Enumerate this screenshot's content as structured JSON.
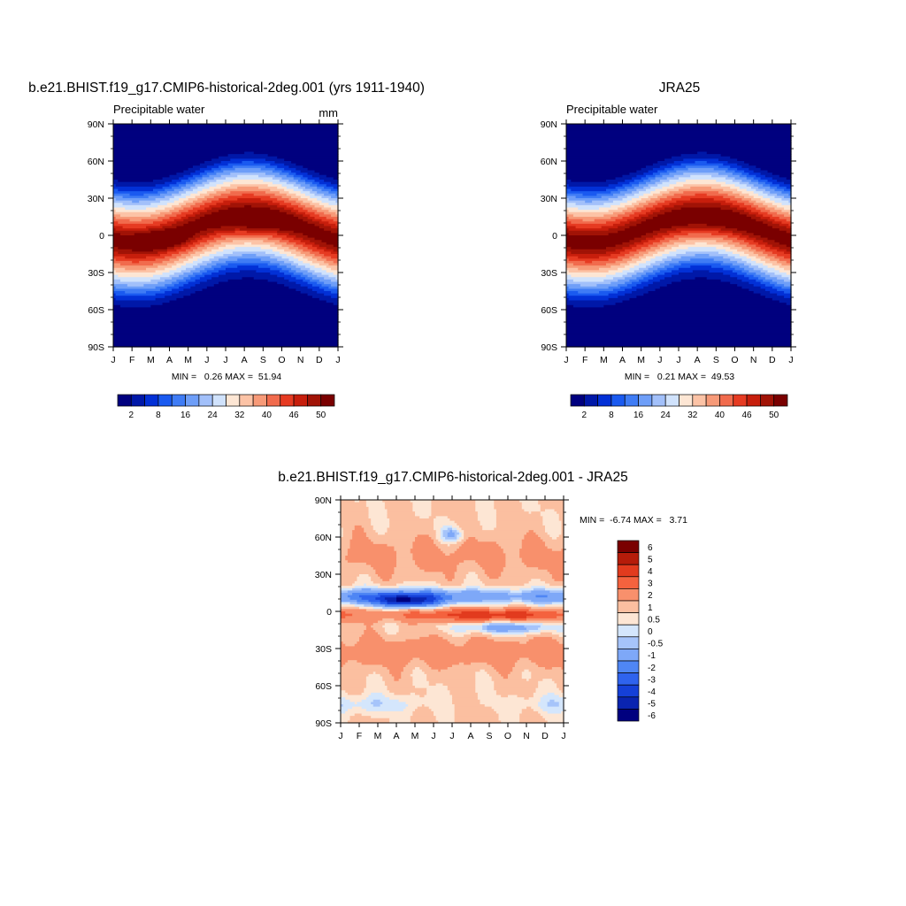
{
  "panels": {
    "model": {
      "title": "b.e21.BHIST.f19_g17.CMIP6-historical-2deg.001 (yrs 1911-1940)",
      "left_label": "Precipitable water",
      "right_label": "mm",
      "stats": "MIN =   0.26 MAX =  51.94"
    },
    "obs": {
      "title": "JRA25",
      "left_label": "Precipitable water",
      "stats": "MIN =   0.21 MAX =  49.53"
    },
    "diff": {
      "title": "b.e21.BHIST.f19_g17.CMIP6-historical-2deg.001 - JRA25",
      "stats": "MIN =  -6.74 MAX =   3.71"
    }
  },
  "axes": {
    "x_ticks": [
      "J",
      "F",
      "M",
      "A",
      "M",
      "J",
      "J",
      "A",
      "S",
      "O",
      "N",
      "D",
      "J"
    ],
    "y_ticks": [
      "90N",
      "60N",
      "30N",
      "0",
      "30S",
      "60S",
      "90S"
    ]
  },
  "colorbars": {
    "main": {
      "labels": [
        "2",
        "8",
        "16",
        "24",
        "32",
        "40",
        "46",
        "50"
      ],
      "colors": [
        "#00007f",
        "#0018a8",
        "#0230d6",
        "#1a5af0",
        "#3f7cf5",
        "#6e9ef8",
        "#a2c0fa",
        "#d0e2fc",
        "#fde6d4",
        "#fcc3a6",
        "#f79a78",
        "#f16b4d",
        "#e63b22",
        "#c71e0c",
        "#a11306",
        "#7a0000"
      ]
    },
    "diff": {
      "labels": [
        "6",
        "5",
        "4",
        "3",
        "2",
        "1",
        "0.5",
        "0",
        "-0.5",
        "-1",
        "-2",
        "-3",
        "-4",
        "-5",
        "-6"
      ],
      "colors": [
        "#7a0000",
        "#b51c0a",
        "#e23b1e",
        "#f4623e",
        "#f8906c",
        "#fbbfa0",
        "#fde6d4",
        "#d4e6fc",
        "#a6c4fa",
        "#7ea8f8",
        "#4f86f4",
        "#2f63ee",
        "#1540d8",
        "#0a24b0",
        "#00007f"
      ]
    }
  },
  "chart_data": [
    {
      "type": "heatmap",
      "title": "b.e21.BHIST.f19_g17.CMIP6-historical-2deg.001 (yrs 1911-1940)",
      "subtitle_left": "Precipitable water",
      "subtitle_right": "mm",
      "x": [
        "J",
        "F",
        "M",
        "A",
        "M",
        "J",
        "J",
        "A",
        "S",
        "O",
        "N",
        "D",
        "J"
      ],
      "y": [
        "90N",
        "60N",
        "30N",
        "0",
        "30S",
        "60S",
        "90S"
      ],
      "units": "mm",
      "levels": [
        2,
        4,
        6,
        8,
        10,
        13,
        16,
        20,
        24,
        28,
        32,
        36,
        40,
        43,
        46,
        50
      ],
      "min": 0.26,
      "max": 51.94,
      "features": {
        "itcz_peak_month": "Aug",
        "itcz_peak_lat": 8,
        "itcz_peak_value": 51.9,
        "secondary_peak_month": "Mar",
        "secondary_peak_lat": -4
      }
    },
    {
      "type": "heatmap",
      "title": "JRA25",
      "subtitle_left": "Precipitable water",
      "x": [
        "J",
        "F",
        "M",
        "A",
        "M",
        "J",
        "J",
        "A",
        "S",
        "O",
        "N",
        "D",
        "J"
      ],
      "y": [
        "90N",
        "60N",
        "30N",
        "0",
        "30S",
        "60S",
        "90S"
      ],
      "units": "mm",
      "levels": [
        2,
        4,
        6,
        8,
        10,
        13,
        16,
        20,
        24,
        28,
        32,
        36,
        40,
        43,
        46,
        50
      ],
      "min": 0.21,
      "max": 49.53,
      "features": {
        "itcz_peak_month": "Aug",
        "itcz_peak_lat": 8,
        "itcz_peak_value": 49.5
      }
    },
    {
      "type": "heatmap",
      "title": "b.e21.BHIST.f19_g17.CMIP6-historical-2deg.001 - JRA25",
      "x": [
        "J",
        "F",
        "M",
        "A",
        "M",
        "J",
        "J",
        "A",
        "S",
        "O",
        "N",
        "D",
        "J"
      ],
      "y": [
        "90N",
        "60N",
        "30N",
        "0",
        "30S",
        "60S",
        "90S"
      ],
      "levels": [
        -6,
        -5,
        -4,
        -3,
        -2,
        -1,
        -0.5,
        0,
        0.5,
        1,
        2,
        3,
        4,
        5,
        6
      ],
      "min": -6.74,
      "max": 3.71,
      "features": {
        "strongest_negative_month": "Apr",
        "strongest_negative_lat": 8,
        "negative_band_lat": 12,
        "positive_band_lat": -3,
        "southern_positive_band_lat": -33
      }
    }
  ]
}
